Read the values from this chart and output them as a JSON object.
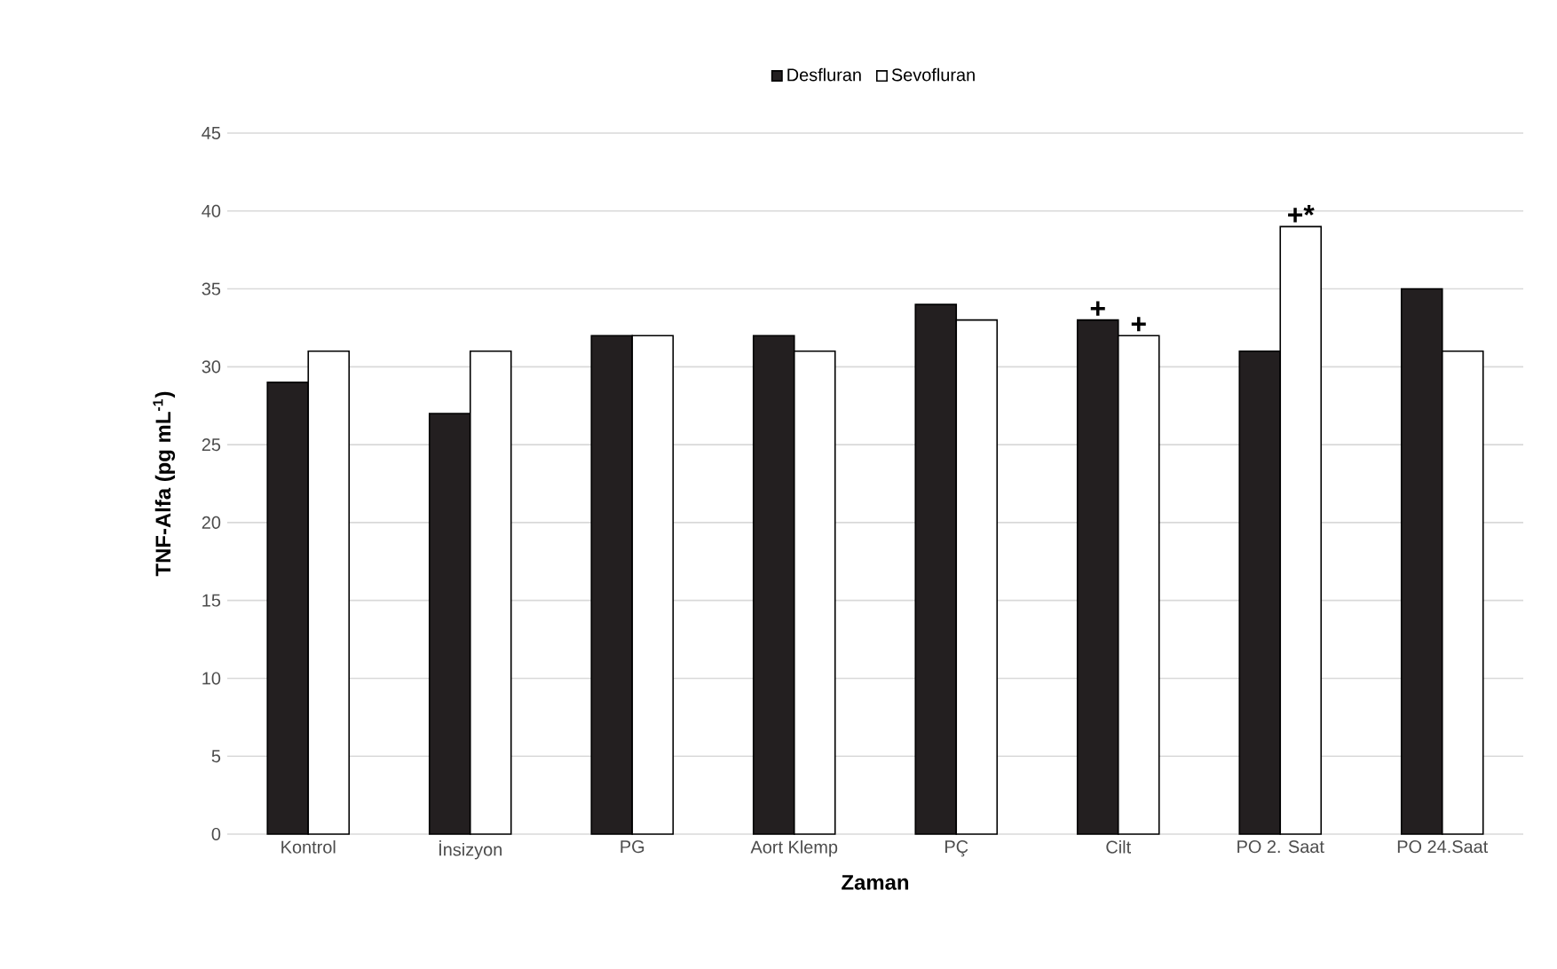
{
  "chart_data": {
    "type": "bar",
    "xlabel": "Zaman",
    "ylabel": "TNF-Alfa (pg mL$^{-1}$)",
    "categories": [
      "Kontrol",
      "İnsizyon",
      "PG",
      "Aort Klemp",
      "PÇ",
      "Cilt",
      "PO 2. Saat",
      "PO 24.Saat"
    ],
    "series": [
      {
        "name": "Desfluran",
        "color": "#231f20",
        "values": [
          29,
          27,
          32,
          32,
          34,
          33,
          31,
          35
        ]
      },
      {
        "name": "Sevofluran",
        "color": "#ffffff",
        "values": [
          31,
          31,
          32,
          31,
          33,
          32,
          39,
          31
        ]
      }
    ],
    "ylim": [
      0,
      45
    ],
    "yticks": [
      0,
      5,
      10,
      15,
      20,
      25,
      30,
      35,
      40,
      45
    ],
    "grid": "y",
    "legend": "top",
    "annotations": [
      {
        "text": "+",
        "x": "Cilt",
        "y": 33
      },
      {
        "text": "+",
        "x": "Cilt",
        "y": 32
      },
      {
        "text": "+*",
        "x": "PO 2. Saat",
        "y": 39
      }
    ]
  }
}
